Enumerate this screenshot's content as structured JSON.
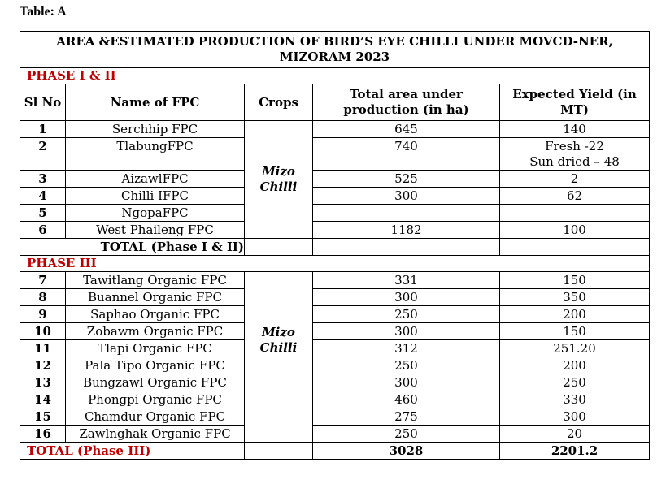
{
  "caption": "Table: A",
  "title": "AREA &ESTIMATED PRODUCTION OF BIRD’S EYE CHILLI UNDER MOVCD-NER, MIZORAM 2023",
  "headers": {
    "sl": "Sl No",
    "name": "Name of FPC",
    "crops": "Crops",
    "area": "Total area under production (in ha)",
    "yield": "Expected Yield (in MT)"
  },
  "phase1": {
    "label": "PHASE I & II",
    "crop_line1": "Mizo",
    "crop_line2": "Chilli",
    "rows": [
      {
        "sl": "1",
        "name": "Serchhip FPC",
        "area": "645",
        "yield": "140"
      },
      {
        "sl": "2",
        "name": "TlabungFPC",
        "area": "740",
        "yield": "Fresh -22",
        "yield2": "Sun dried – 48"
      },
      {
        "sl": "3",
        "name": "AizawlFPC",
        "area": "525",
        "yield": "2"
      },
      {
        "sl": "4",
        "name": "Chilli IFPC",
        "area": "300",
        "yield": "62"
      },
      {
        "sl": "5",
        "name": "NgopaFPC",
        "area": "",
        "yield": ""
      },
      {
        "sl": "6",
        "name": "West Phaileng FPC",
        "area": "1182",
        "yield": "100"
      }
    ],
    "total_label": "TOTAL (Phase I & II)"
  },
  "phase3": {
    "label": "PHASE III",
    "crop_line1": "Mizo",
    "crop_line2": "Chilli",
    "rows": [
      {
        "sl": "7",
        "name": "Tawitlang Organic FPC",
        "area": "331",
        "yield": "150"
      },
      {
        "sl": "8",
        "name": "Buannel Organic FPC",
        "area": "300",
        "yield": "350"
      },
      {
        "sl": "9",
        "name": "Saphao Organic FPC",
        "area": "250",
        "yield": "200"
      },
      {
        "sl": "10",
        "name": "Zobawm Organic FPC",
        "area": "300",
        "yield": "150"
      },
      {
        "sl": "11",
        "name": "Tlapi Organic FPC",
        "area": "312",
        "yield": "251.20"
      },
      {
        "sl": "12",
        "name": "Pala Tipo Organic FPC",
        "area": "250",
        "yield": "200"
      },
      {
        "sl": "13",
        "name": "Bungzawl Organic FPC",
        "area": "300",
        "yield": "250"
      },
      {
        "sl": "14",
        "name": "Phongpi Organic FPC",
        "area": "460",
        "yield": "330"
      },
      {
        "sl": "15",
        "name": "Chamdur Organic FPC",
        "area": "275",
        "yield": "300"
      },
      {
        "sl": "16",
        "name": "Zawlnghak Organic FPC",
        "area": "250",
        "yield": "20"
      }
    ],
    "total_label": "TOTAL (Phase III)",
    "total_area": "3028",
    "total_yield": "2201.2"
  },
  "colors": {
    "phase_label": "#c00000",
    "border": "#000000"
  }
}
